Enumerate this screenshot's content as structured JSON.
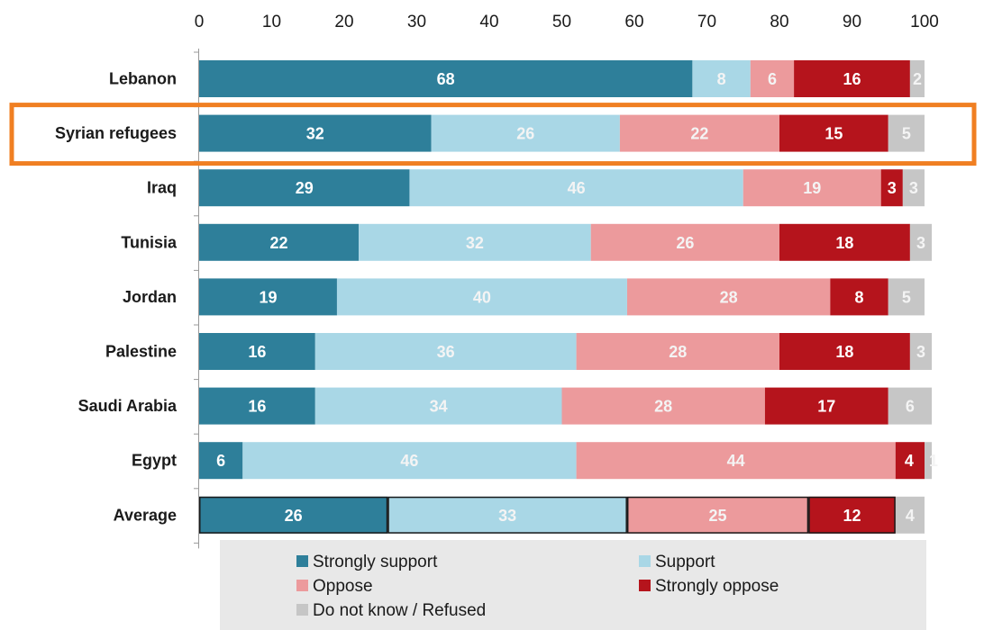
{
  "chart_data": {
    "type": "bar",
    "orientation": "horizontal",
    "stacked": true,
    "categories": [
      "Lebanon",
      "Syrian refugees",
      "Iraq",
      "Tunisia",
      "Jordan",
      "Palestine",
      "Saudi Arabia",
      "Egypt",
      "Average"
    ],
    "series": [
      {
        "name": "Strongly support",
        "color": "#2e7f9a",
        "values": [
          68,
          32,
          29,
          22,
          19,
          16,
          16,
          6,
          26
        ]
      },
      {
        "name": "Support",
        "color": "#a9d7e6",
        "values": [
          8,
          26,
          46,
          32,
          40,
          36,
          34,
          46,
          33
        ]
      },
      {
        "name": "Oppose",
        "color": "#ec9a9c",
        "values": [
          6,
          22,
          19,
          26,
          28,
          28,
          28,
          44,
          25
        ]
      },
      {
        "name": "Strongly oppose",
        "color": "#b5141c",
        "values": [
          16,
          15,
          3,
          18,
          8,
          18,
          17,
          4,
          12
        ]
      },
      {
        "name": "Do not know / Refused",
        "color": "#c6c6c6",
        "values": [
          2,
          5,
          3,
          3,
          5,
          3,
          6,
          1,
          4
        ]
      }
    ],
    "xlim": [
      0,
      100
    ],
    "xticks": [
      0,
      10,
      20,
      30,
      40,
      50,
      60,
      70,
      80,
      90,
      100
    ],
    "x_axis_position": "top",
    "grid": false,
    "highlight": {
      "category": "Syrian refugees",
      "color": "#f07f22"
    },
    "outlined_category": "Average",
    "legend": {
      "position": "bottom",
      "columns": 2
    },
    "title": "",
    "xlabel": "",
    "ylabel": ""
  }
}
